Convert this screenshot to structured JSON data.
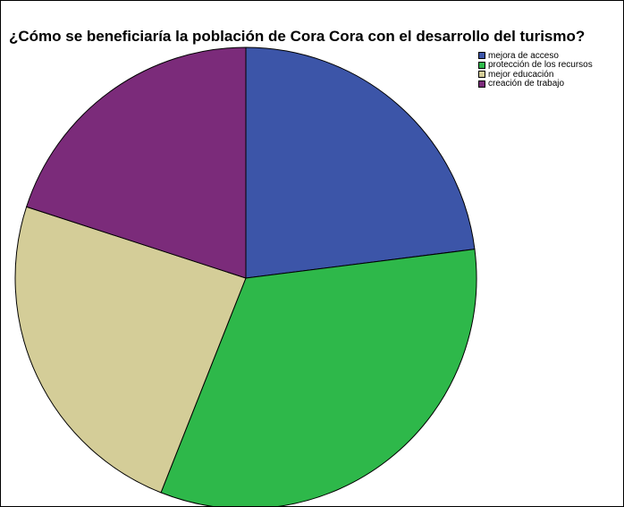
{
  "chart_data": {
    "type": "pie",
    "title": "¿Cómo se beneficiaría la población de Cora Cora con el desarrollo del turismo?",
    "categories": [
      "mejora de acceso",
      "protección de los recursos",
      "mejor educación",
      "creación de trabajo"
    ],
    "values": [
      23,
      33,
      24,
      20
    ],
    "colors": [
      "#3c55a8",
      "#2eb84a",
      "#d4cd98",
      "#7b2b7a"
    ],
    "start_angle_deg": 0,
    "direction": "clockwise",
    "legend_position": "top-right"
  }
}
